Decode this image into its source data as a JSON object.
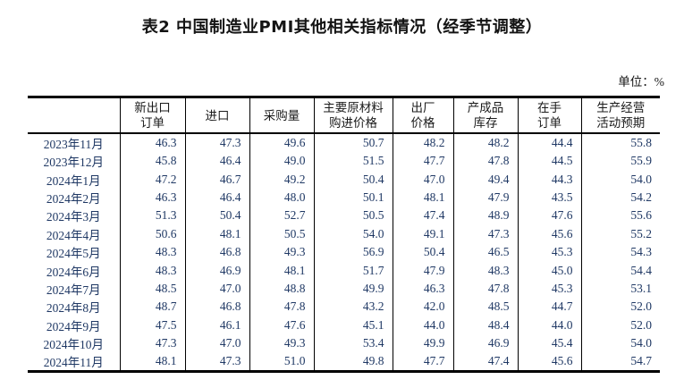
{
  "page": {
    "title": "表2 中国制造业PMI其他相关指标情况（经季节调整）",
    "unit_label": "单位：%"
  },
  "table": {
    "corner_label": "",
    "columns": [
      [
        "新出口",
        "订单"
      ],
      [
        "进口"
      ],
      [
        "采购量"
      ],
      [
        "主要原材料",
        "购进价格"
      ],
      [
        "出厂",
        "价格"
      ],
      [
        "产成品",
        "库存"
      ],
      [
        "在手",
        "订单"
      ],
      [
        "生产经营",
        "活动预期"
      ]
    ],
    "rows": [
      {
        "label": "2023年11月",
        "values": [
          "46.3",
          "47.3",
          "49.6",
          "50.7",
          "48.2",
          "48.2",
          "44.4",
          "55.8"
        ]
      },
      {
        "label": "2023年12月",
        "values": [
          "45.8",
          "46.4",
          "49.0",
          "51.5",
          "47.7",
          "47.8",
          "44.5",
          "55.9"
        ]
      },
      {
        "label": "2024年1月",
        "values": [
          "47.2",
          "46.7",
          "49.2",
          "50.4",
          "47.0",
          "49.4",
          "44.3",
          "54.0"
        ]
      },
      {
        "label": "2024年2月",
        "values": [
          "46.3",
          "46.4",
          "48.0",
          "50.1",
          "48.1",
          "47.9",
          "43.5",
          "54.2"
        ]
      },
      {
        "label": "2024年3月",
        "values": [
          "51.3",
          "50.4",
          "52.7",
          "50.5",
          "47.4",
          "48.9",
          "47.6",
          "55.6"
        ]
      },
      {
        "label": "2024年4月",
        "values": [
          "50.6",
          "48.1",
          "50.5",
          "54.0",
          "49.1",
          "47.3",
          "45.6",
          "55.2"
        ]
      },
      {
        "label": "2024年5月",
        "values": [
          "48.3",
          "46.8",
          "49.3",
          "56.9",
          "50.4",
          "46.5",
          "45.3",
          "54.3"
        ]
      },
      {
        "label": "2024年6月",
        "values": [
          "48.3",
          "46.9",
          "48.1",
          "51.7",
          "47.9",
          "48.3",
          "45.0",
          "54.4"
        ]
      },
      {
        "label": "2024年7月",
        "values": [
          "48.5",
          "47.0",
          "48.8",
          "49.9",
          "46.3",
          "47.8",
          "45.3",
          "53.1"
        ]
      },
      {
        "label": "2024年8月",
        "values": [
          "48.7",
          "46.8",
          "47.8",
          "43.2",
          "42.0",
          "48.5",
          "44.7",
          "52.0"
        ]
      },
      {
        "label": "2024年9月",
        "values": [
          "47.5",
          "46.1",
          "47.6",
          "45.1",
          "44.0",
          "48.4",
          "44.0",
          "52.0"
        ]
      },
      {
        "label": "2024年10月",
        "values": [
          "47.3",
          "47.0",
          "49.3",
          "53.4",
          "49.9",
          "46.9",
          "45.4",
          "54.0"
        ]
      },
      {
        "label": "2024年11月",
        "values": [
          "48.1",
          "47.3",
          "51.0",
          "49.8",
          "47.7",
          "47.4",
          "45.6",
          "54.7"
        ]
      }
    ]
  }
}
